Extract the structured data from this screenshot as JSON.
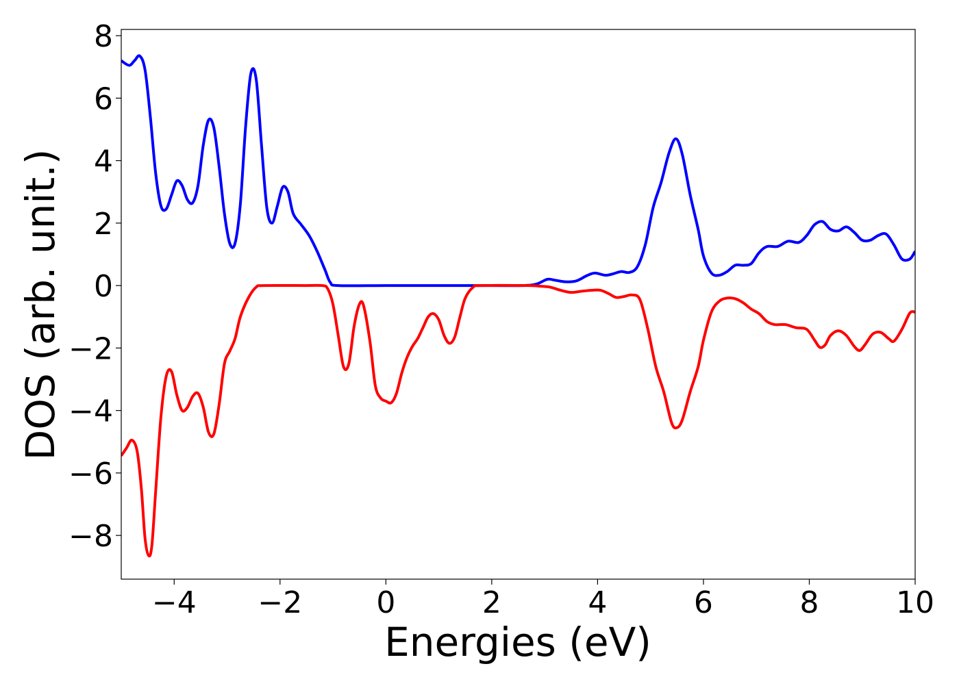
{
  "chart_data": {
    "type": "line",
    "xlabel": "Energies (eV)",
    "ylabel": "DOS (arb. unit.)",
    "xlim": [
      -5,
      10
    ],
    "ylim": [
      -9.4,
      8.2
    ],
    "xticks": [
      -4,
      -2,
      0,
      2,
      4,
      6,
      8,
      10
    ],
    "xtick_labels": [
      "−4",
      "−2",
      "0",
      "2",
      "4",
      "6",
      "8",
      "10"
    ],
    "yticks": [
      8,
      6,
      4,
      2,
      0,
      -2,
      -4,
      -6,
      -8
    ],
    "ytick_labels": [
      "8",
      "6",
      "4",
      "2",
      "0",
      "−2",
      "−4",
      "−6",
      "−8"
    ],
    "grid": false,
    "series": [
      {
        "color": "#0000ff",
        "points": [
          [
            -5.0,
            7.2
          ],
          [
            -4.85,
            7.05
          ],
          [
            -4.75,
            7.2
          ],
          [
            -4.65,
            7.35
          ],
          [
            -4.55,
            6.9
          ],
          [
            -4.45,
            5.4
          ],
          [
            -4.35,
            3.6
          ],
          [
            -4.25,
            2.55
          ],
          [
            -4.15,
            2.45
          ],
          [
            -4.05,
            2.9
          ],
          [
            -3.95,
            3.35
          ],
          [
            -3.85,
            3.2
          ],
          [
            -3.75,
            2.75
          ],
          [
            -3.65,
            2.65
          ],
          [
            -3.55,
            3.2
          ],
          [
            -3.45,
            4.5
          ],
          [
            -3.35,
            5.3
          ],
          [
            -3.25,
            5.05
          ],
          [
            -3.15,
            3.8
          ],
          [
            -3.05,
            2.3
          ],
          [
            -2.95,
            1.35
          ],
          [
            -2.85,
            1.35
          ],
          [
            -2.75,
            2.6
          ],
          [
            -2.65,
            5.1
          ],
          [
            -2.55,
            6.8
          ],
          [
            -2.45,
            6.6
          ],
          [
            -2.35,
            4.5
          ],
          [
            -2.25,
            2.5
          ],
          [
            -2.15,
            2.0
          ],
          [
            -2.05,
            2.55
          ],
          [
            -1.95,
            3.15
          ],
          [
            -1.85,
            3.0
          ],
          [
            -1.75,
            2.3
          ],
          [
            -1.6,
            1.95
          ],
          [
            -1.45,
            1.6
          ],
          [
            -1.3,
            1.1
          ],
          [
            -1.15,
            0.5
          ],
          [
            -1.05,
            0.1
          ],
          [
            -0.9,
            0.0
          ],
          [
            0.0,
            0.0
          ],
          [
            1.0,
            0.0
          ],
          [
            2.0,
            0.0
          ],
          [
            2.6,
            0.0
          ],
          [
            2.85,
            0.05
          ],
          [
            3.05,
            0.2
          ],
          [
            3.2,
            0.17
          ],
          [
            3.4,
            0.12
          ],
          [
            3.6,
            0.15
          ],
          [
            3.8,
            0.32
          ],
          [
            3.95,
            0.4
          ],
          [
            4.15,
            0.33
          ],
          [
            4.3,
            0.38
          ],
          [
            4.45,
            0.45
          ],
          [
            4.6,
            0.42
          ],
          [
            4.75,
            0.6
          ],
          [
            4.9,
            1.3
          ],
          [
            5.05,
            2.5
          ],
          [
            5.2,
            3.3
          ],
          [
            5.35,
            4.25
          ],
          [
            5.48,
            4.7
          ],
          [
            5.6,
            4.2
          ],
          [
            5.75,
            2.9
          ],
          [
            5.9,
            1.8
          ],
          [
            6.0,
            0.95
          ],
          [
            6.15,
            0.4
          ],
          [
            6.3,
            0.33
          ],
          [
            6.45,
            0.45
          ],
          [
            6.6,
            0.65
          ],
          [
            6.75,
            0.65
          ],
          [
            6.9,
            0.7
          ],
          [
            7.05,
            1.05
          ],
          [
            7.2,
            1.25
          ],
          [
            7.4,
            1.25
          ],
          [
            7.6,
            1.42
          ],
          [
            7.8,
            1.38
          ],
          [
            7.95,
            1.6
          ],
          [
            8.1,
            1.95
          ],
          [
            8.25,
            2.05
          ],
          [
            8.4,
            1.8
          ],
          [
            8.55,
            1.75
          ],
          [
            8.7,
            1.88
          ],
          [
            8.85,
            1.7
          ],
          [
            9.0,
            1.45
          ],
          [
            9.15,
            1.45
          ],
          [
            9.3,
            1.6
          ],
          [
            9.45,
            1.65
          ],
          [
            9.6,
            1.3
          ],
          [
            9.75,
            0.85
          ],
          [
            9.9,
            0.85
          ],
          [
            10.0,
            1.1
          ]
        ]
      },
      {
        "color": "#ff0000",
        "points": [
          [
            -5.0,
            -5.45
          ],
          [
            -4.9,
            -5.2
          ],
          [
            -4.8,
            -4.95
          ],
          [
            -4.7,
            -5.3
          ],
          [
            -4.62,
            -6.5
          ],
          [
            -4.55,
            -8.1
          ],
          [
            -4.48,
            -8.65
          ],
          [
            -4.42,
            -8.3
          ],
          [
            -4.35,
            -6.6
          ],
          [
            -4.25,
            -4.2
          ],
          [
            -4.15,
            -2.9
          ],
          [
            -4.05,
            -2.75
          ],
          [
            -3.95,
            -3.5
          ],
          [
            -3.85,
            -4.0
          ],
          [
            -3.75,
            -3.9
          ],
          [
            -3.65,
            -3.55
          ],
          [
            -3.55,
            -3.45
          ],
          [
            -3.45,
            -3.9
          ],
          [
            -3.35,
            -4.7
          ],
          [
            -3.25,
            -4.75
          ],
          [
            -3.15,
            -3.8
          ],
          [
            -3.05,
            -2.5
          ],
          [
            -2.95,
            -2.1
          ],
          [
            -2.85,
            -1.7
          ],
          [
            -2.75,
            -1.0
          ],
          [
            -2.6,
            -0.4
          ],
          [
            -2.45,
            -0.05
          ],
          [
            -2.3,
            0.0
          ],
          [
            -1.5,
            0.0
          ],
          [
            -1.2,
            0.0
          ],
          [
            -1.1,
            -0.1
          ],
          [
            -1.0,
            -0.6
          ],
          [
            -0.9,
            -1.6
          ],
          [
            -0.8,
            -2.6
          ],
          [
            -0.7,
            -2.5
          ],
          [
            -0.6,
            -1.3
          ],
          [
            -0.5,
            -0.6
          ],
          [
            -0.42,
            -0.65
          ],
          [
            -0.3,
            -1.8
          ],
          [
            -0.2,
            -3.2
          ],
          [
            -0.1,
            -3.6
          ],
          [
            0.0,
            -3.7
          ],
          [
            0.1,
            -3.75
          ],
          [
            0.2,
            -3.45
          ],
          [
            0.3,
            -2.8
          ],
          [
            0.4,
            -2.3
          ],
          [
            0.5,
            -1.95
          ],
          [
            0.6,
            -1.7
          ],
          [
            0.7,
            -1.35
          ],
          [
            0.8,
            -1.0
          ],
          [
            0.9,
            -0.9
          ],
          [
            1.0,
            -1.1
          ],
          [
            1.1,
            -1.6
          ],
          [
            1.2,
            -1.85
          ],
          [
            1.3,
            -1.65
          ],
          [
            1.4,
            -1.0
          ],
          [
            1.5,
            -0.4
          ],
          [
            1.65,
            -0.05
          ],
          [
            1.8,
            0.0
          ],
          [
            2.7,
            0.0
          ],
          [
            2.9,
            -0.02
          ],
          [
            3.1,
            -0.05
          ],
          [
            3.3,
            -0.15
          ],
          [
            3.5,
            -0.22
          ],
          [
            3.7,
            -0.18
          ],
          [
            3.9,
            -0.15
          ],
          [
            4.05,
            -0.15
          ],
          [
            4.2,
            -0.25
          ],
          [
            4.35,
            -0.38
          ],
          [
            4.5,
            -0.35
          ],
          [
            4.65,
            -0.3
          ],
          [
            4.8,
            -0.45
          ],
          [
            4.95,
            -1.4
          ],
          [
            5.1,
            -2.6
          ],
          [
            5.25,
            -3.4
          ],
          [
            5.4,
            -4.4
          ],
          [
            5.5,
            -4.55
          ],
          [
            5.6,
            -4.3
          ],
          [
            5.75,
            -3.4
          ],
          [
            5.9,
            -2.6
          ],
          [
            6.0,
            -1.75
          ],
          [
            6.15,
            -0.85
          ],
          [
            6.3,
            -0.5
          ],
          [
            6.45,
            -0.4
          ],
          [
            6.6,
            -0.42
          ],
          [
            6.75,
            -0.55
          ],
          [
            6.9,
            -0.75
          ],
          [
            7.05,
            -0.9
          ],
          [
            7.2,
            -1.15
          ],
          [
            7.35,
            -1.25
          ],
          [
            7.55,
            -1.25
          ],
          [
            7.75,
            -1.35
          ],
          [
            7.95,
            -1.4
          ],
          [
            8.1,
            -1.75
          ],
          [
            8.2,
            -1.98
          ],
          [
            8.3,
            -1.9
          ],
          [
            8.4,
            -1.6
          ],
          [
            8.55,
            -1.45
          ],
          [
            8.7,
            -1.6
          ],
          [
            8.85,
            -1.95
          ],
          [
            8.95,
            -2.08
          ],
          [
            9.05,
            -1.9
          ],
          [
            9.2,
            -1.55
          ],
          [
            9.35,
            -1.5
          ],
          [
            9.5,
            -1.7
          ],
          [
            9.6,
            -1.78
          ],
          [
            9.75,
            -1.4
          ],
          [
            9.9,
            -0.88
          ],
          [
            10.0,
            -0.85
          ]
        ]
      }
    ]
  }
}
